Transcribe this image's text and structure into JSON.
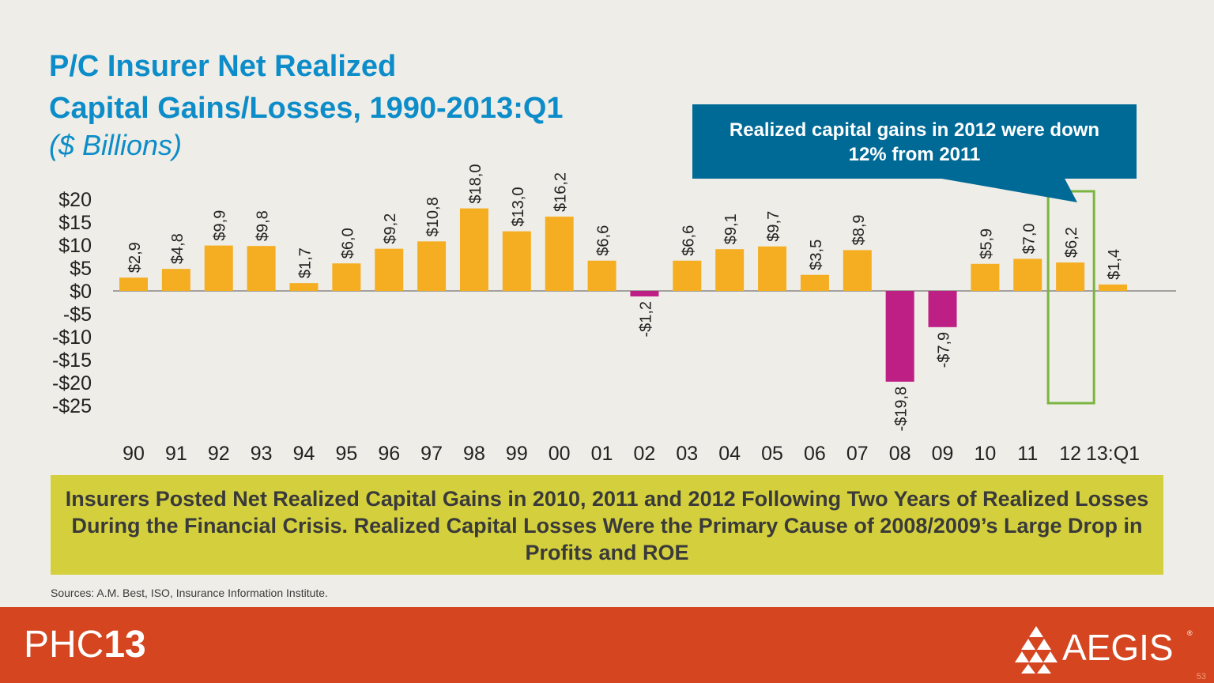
{
  "title": {
    "line1": "P/C Insurer Net Realized",
    "line2": "Capital Gains/Losses, 1990-2013:Q1",
    "subtitle": "($ Billions)"
  },
  "callout": "Realized capital gains in  2012 were down 12% from 2011",
  "summary": "Insurers Posted Net Realized Capital Gains in 2010, 2011 and 2012 Following Two Years of Realized Losses During the Financial Crisis.  Realized Capital Losses Were the Primary Cause of 2008/2009’s Large Drop in Profits and ROE",
  "sources": "Sources: A.M. Best, ISO, Insurance Information Institute.",
  "footer": {
    "brand_prefix": "PHC",
    "brand_number": "13",
    "logo_text": "AEGIS",
    "logo_mark": "®",
    "page_number": "53"
  },
  "colors": {
    "positive_bar": "#f5ae22",
    "negative_bar": "#be1f85",
    "highlight_box": "#7ab540",
    "title": "#0c8dc9"
  },
  "chart_data": {
    "type": "bar",
    "categories": [
      "90",
      "91",
      "92",
      "93",
      "94",
      "95",
      "96",
      "97",
      "98",
      "99",
      "00",
      "01",
      "02",
      "03",
      "04",
      "05",
      "06",
      "07",
      "08",
      "09",
      "10",
      "11",
      "12",
      "13:Q1"
    ],
    "values": [
      2.9,
      4.8,
      9.9,
      9.8,
      1.7,
      6.0,
      9.2,
      10.8,
      18.0,
      13.0,
      16.2,
      6.6,
      -1.2,
      6.6,
      9.1,
      9.7,
      3.5,
      8.9,
      -19.8,
      -7.9,
      5.9,
      7.0,
      6.2,
      1.4
    ],
    "data_labels": [
      "$2,9",
      "$4,8",
      "$9,9",
      "$9,8",
      "$1,7",
      "$6,0",
      "$9,2",
      "$10,8",
      "$18,0",
      "$13,0",
      "$16,2",
      "$6,6",
      "-$1,2",
      "$6,6",
      "$9,1",
      "$9,7",
      "$3,5",
      "$8,9",
      "-$19,8",
      "-$7,9",
      "$5,9",
      "$7,0",
      "$6,2",
      "$1,4"
    ],
    "y_ticks": [
      20,
      15,
      10,
      5,
      0,
      -5,
      -10,
      -15,
      -20,
      -25
    ],
    "y_tick_labels": [
      "$20",
      "$15",
      "$10",
      "$5",
      "$0",
      "-$5",
      "-$10",
      "-$15",
      "-$20",
      "-$25"
    ],
    "ylim": [
      -25,
      20
    ],
    "highlight_category": "12",
    "grid": false
  }
}
